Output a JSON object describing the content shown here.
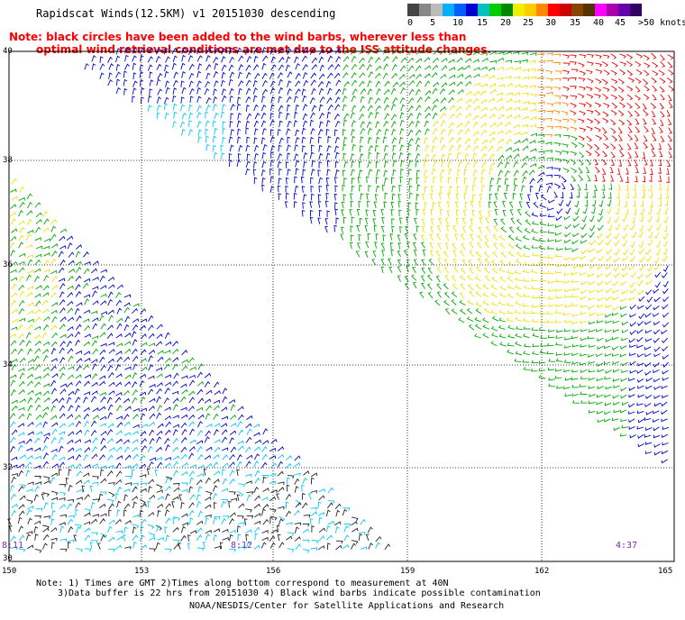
{
  "header": {
    "title": "Rapidscat Winds(12.5KM) v1 20151030 descending",
    "note_line1": "Note: black circles have been added to the wind barbs, wherever less than",
    "note_line2": "optimal wind retrieval conditions are met due to the ISS attitude changes."
  },
  "colorbar": {
    "colors": [
      "#444444",
      "#888888",
      "#bbbbbb",
      "#00b0ff",
      "#0060ff",
      "#0000d0",
      "#00c0c0",
      "#00cc00",
      "#008800",
      "#eeee00",
      "#ffcc00",
      "#ff8800",
      "#ff0000",
      "#cc0000",
      "#884400",
      "#553300",
      "#ff00ff",
      "#aa00aa",
      "#6600aa",
      "#330066"
    ],
    "labels": [
      "0",
      "5",
      "10",
      "15",
      "20",
      "25",
      "30",
      "35",
      "40",
      "45",
      ">50 knots"
    ]
  },
  "map": {
    "lat_labels": [
      "40",
      "38",
      "36",
      "34",
      "32",
      "30"
    ],
    "lon_labels": [
      "150",
      "153",
      "156",
      "159",
      "162",
      "165"
    ],
    "time_labels": [
      "8:11",
      "8:12",
      "4:37"
    ],
    "barb_colors": {
      "calm": "#222222",
      "light": "#00c8ff",
      "moderate": "#0000cc",
      "fresh": "#00aa00",
      "strong": "#f0e000",
      "gale": "#ff8800",
      "storm": "#ee0000"
    }
  },
  "footer": {
    "line1": "Note: 1) Times are GMT 2)Times along bottom correspond to measurement at 40N",
    "line2": "3)Data buffer is 22 hrs from 20151030 4) Black wind barbs indicate possible contamination",
    "line3": "NOAA/NESDIS/Center for Satellite Applications and Research"
  }
}
